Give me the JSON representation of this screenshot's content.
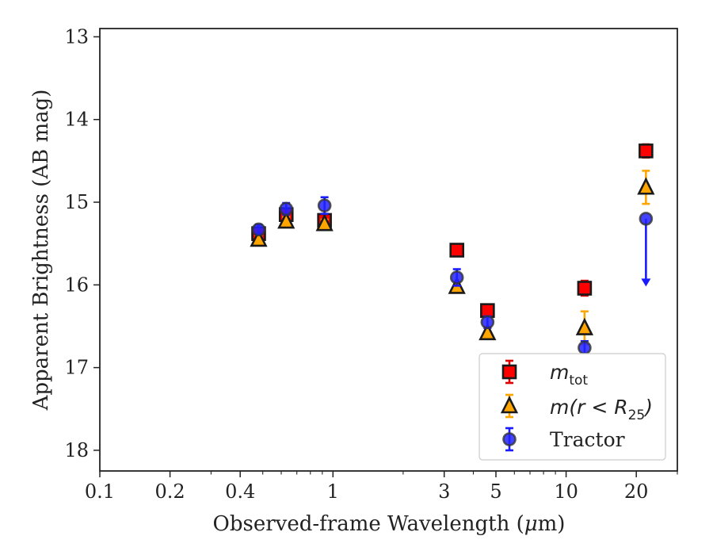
{
  "chart_data": {
    "type": "scatter",
    "xlabel_pre": "Observed-frame Wavelength (",
    "xlabel_mu": "μ",
    "xlabel_post": "m)",
    "ylabel": "Apparent Brightness (AB mag)",
    "x_scale": "log",
    "xlim": [
      0.1,
      30
    ],
    "ylim": [
      18.25,
      12.9
    ],
    "y_inverted": true,
    "x_ticks": [
      0.1,
      0.2,
      0.4,
      1,
      3,
      5,
      10,
      20
    ],
    "x_tick_labels": [
      "0.1",
      "0.2",
      "0.4",
      "1",
      "3",
      "5",
      "10",
      "20"
    ],
    "y_ticks": [
      13,
      14,
      15,
      16,
      17,
      18
    ],
    "y_tick_labels": [
      "13",
      "14",
      "15",
      "16",
      "17",
      "18"
    ],
    "grid": false,
    "legend_position": "lower-right",
    "series": [
      {
        "key": "mtot",
        "name_base": "m",
        "name_sub": "tot",
        "marker": "square",
        "color": "#ff0000",
        "errcolor": "#dd0000",
        "points": [
          {
            "x": 0.48,
            "y": 15.38,
            "err": 0.05
          },
          {
            "x": 0.63,
            "y": 15.15,
            "err": 0.05
          },
          {
            "x": 0.92,
            "y": 15.22,
            "err": 0.05
          },
          {
            "x": 3.4,
            "y": 15.58,
            "err": 0.07
          },
          {
            "x": 4.6,
            "y": 16.31,
            "err": 0.07
          },
          {
            "x": 12.0,
            "y": 16.04,
            "err": 0.09
          },
          {
            "x": 22.0,
            "y": 14.38,
            "err": 0.08
          }
        ]
      },
      {
        "key": "mr25",
        "name_base": "m(r < R",
        "name_sub": "25",
        "name_post": ")",
        "marker": "triangle",
        "color": "#ffa500",
        "errcolor": "#ffa500",
        "points": [
          {
            "x": 0.48,
            "y": 15.45,
            "err": 0.05
          },
          {
            "x": 0.63,
            "y": 15.23,
            "err": 0.05
          },
          {
            "x": 0.92,
            "y": 15.26,
            "err": 0.05
          },
          {
            "x": 3.4,
            "y": 16.02,
            "err": 0.06
          },
          {
            "x": 4.6,
            "y": 16.58,
            "err": 0.06
          },
          {
            "x": 12.0,
            "y": 16.52,
            "err": 0.2
          },
          {
            "x": 22.0,
            "y": 14.82,
            "err": 0.2
          }
        ]
      },
      {
        "key": "tractor",
        "name": "Tractor",
        "marker": "circle",
        "color": "#2222ff",
        "errcolor": "#1a1aff",
        "points": [
          {
            "x": 0.48,
            "y": 15.33,
            "err": 0.06
          },
          {
            "x": 0.63,
            "y": 15.08,
            "err": 0.07
          },
          {
            "x": 0.92,
            "y": 15.04,
            "err": 0.1
          },
          {
            "x": 3.4,
            "y": 15.91,
            "err": 0.1
          },
          {
            "x": 4.6,
            "y": 16.45,
            "err": 0.07
          },
          {
            "x": 12.0,
            "y": 16.76,
            "err": 0.08
          },
          {
            "x": 22.0,
            "y": 15.2,
            "err": 0.0,
            "upper_limit_to": 16.0
          }
        ]
      }
    ]
  }
}
